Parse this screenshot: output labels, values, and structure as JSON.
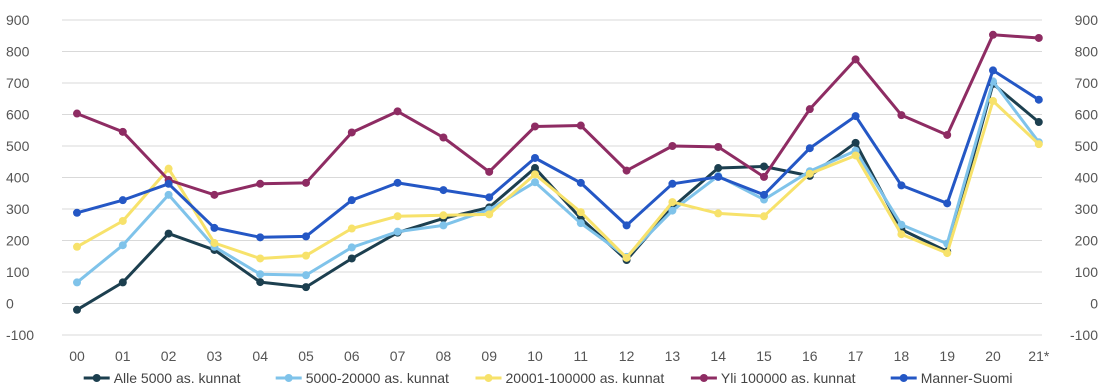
{
  "chart_data": {
    "type": "line",
    "categories": [
      "00",
      "01",
      "02",
      "03",
      "04",
      "05",
      "06",
      "07",
      "08",
      "09",
      "10",
      "11",
      "12",
      "13",
      "14",
      "15",
      "16",
      "17",
      "18",
      "19",
      "20",
      "21*"
    ],
    "ylim": [
      -100,
      900
    ],
    "yticks": [
      -100,
      0,
      100,
      200,
      300,
      400,
      500,
      600,
      700,
      800,
      900
    ],
    "grid": true,
    "dual_y_axis": true,
    "legend_position": "bottom",
    "series": [
      {
        "name": "Alle 5000 as. kunnat",
        "color": "#1c3f4f",
        "values": [
          -20,
          67,
          222,
          170,
          68,
          52,
          143,
          225,
          270,
          305,
          430,
          270,
          138,
          305,
          430,
          435,
          405,
          510,
          235,
          165,
          697,
          576
        ]
      },
      {
        "name": "5000-20000 as. kunnat",
        "color": "#7fc3ea",
        "values": [
          67,
          185,
          345,
          180,
          93,
          90,
          178,
          228,
          248,
          298,
          385,
          255,
          148,
          295,
          405,
          330,
          420,
          485,
          250,
          190,
          705,
          512
        ]
      },
      {
        "name": "20001-100000 as. kunnat",
        "color": "#f7e26b",
        "values": [
          180,
          262,
          428,
          192,
          143,
          152,
          238,
          277,
          280,
          283,
          410,
          290,
          145,
          322,
          286,
          277,
          412,
          470,
          220,
          160,
          643,
          506
        ]
      },
      {
        "name": "Yli 100000 as. kunnat",
        "color": "#8e2c63",
        "values": [
          603,
          545,
          392,
          345,
          380,
          383,
          543,
          610,
          527,
          418,
          562,
          565,
          422,
          500,
          497,
          402,
          617,
          775,
          598,
          535,
          853,
          843
        ]
      },
      {
        "name": "Manner-Suomi",
        "color": "#2457c5",
        "values": [
          288,
          328,
          380,
          240,
          210,
          213,
          328,
          383,
          360,
          337,
          462,
          383,
          248,
          380,
          402,
          345,
          493,
          595,
          375,
          318,
          740,
          647
        ]
      }
    ]
  }
}
